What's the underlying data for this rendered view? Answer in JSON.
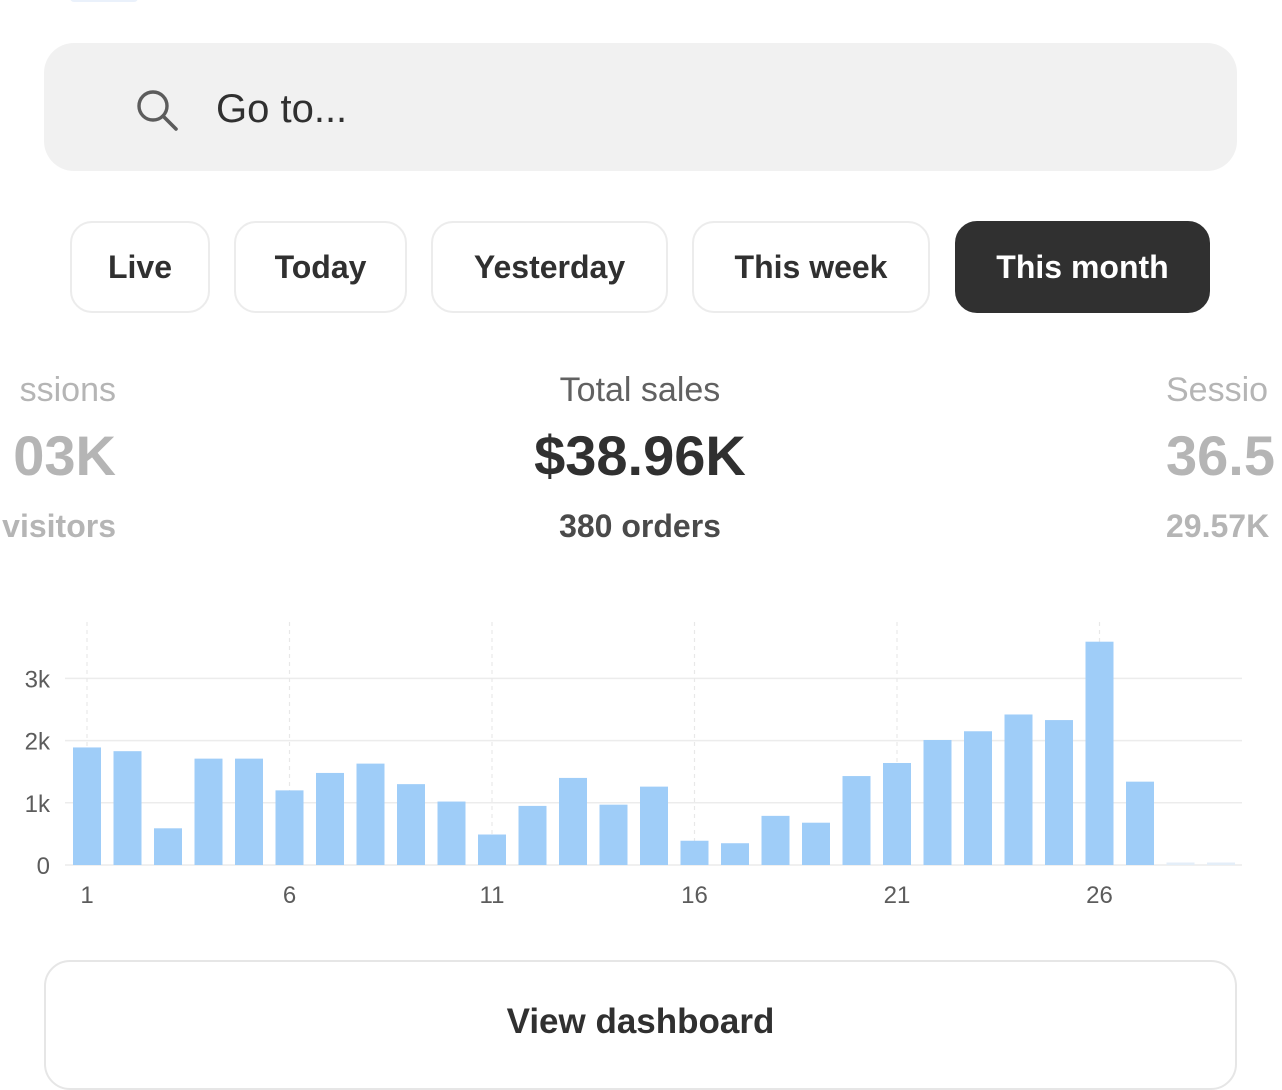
{
  "search": {
    "placeholder": "Go to..."
  },
  "tabs": [
    {
      "label": "Live",
      "active": false
    },
    {
      "label": "Today",
      "active": false
    },
    {
      "label": "Yesterday",
      "active": false
    },
    {
      "label": "This week",
      "active": false
    },
    {
      "label": "This month",
      "active": true
    }
  ],
  "metrics": {
    "left": {
      "label": "ssions",
      "value": "03K",
      "sub": "visitors"
    },
    "center": {
      "label": "Total sales",
      "value": "$38.96K",
      "sub": "380 orders"
    },
    "right": {
      "label": "Sessio",
      "value": "36.5",
      "sub": "29.57K"
    }
  },
  "colors": {
    "bar": "#9fcdf8",
    "active_tab": "#303030",
    "search_bg": "#f1f1f1"
  },
  "chart_data": {
    "type": "bar",
    "categories": [
      "1",
      "2",
      "3",
      "4",
      "5",
      "6",
      "7",
      "8",
      "9",
      "10",
      "11",
      "12",
      "13",
      "14",
      "15",
      "16",
      "17",
      "18",
      "19",
      "20",
      "21",
      "22",
      "23",
      "24",
      "25",
      "26",
      "27",
      "28",
      "29"
    ],
    "x_tick_labels": [
      "1",
      "6",
      "11",
      "16",
      "21",
      "26"
    ],
    "y_tick_labels": [
      "0",
      "1k",
      "2k",
      "3k"
    ],
    "ylim": [
      0,
      3900
    ],
    "grid": true,
    "series": [
      {
        "values": [
          1890,
          1830,
          590,
          1710,
          1710,
          1200,
          1480,
          1630,
          1300,
          1020,
          490,
          950,
          1400,
          970,
          1260,
          390,
          350,
          790,
          680,
          1430,
          1640,
          2010,
          2150,
          2420,
          2330,
          3590,
          1340,
          40,
          40
        ]
      }
    ]
  },
  "footer": {
    "view_dashboard": "View dashboard"
  }
}
